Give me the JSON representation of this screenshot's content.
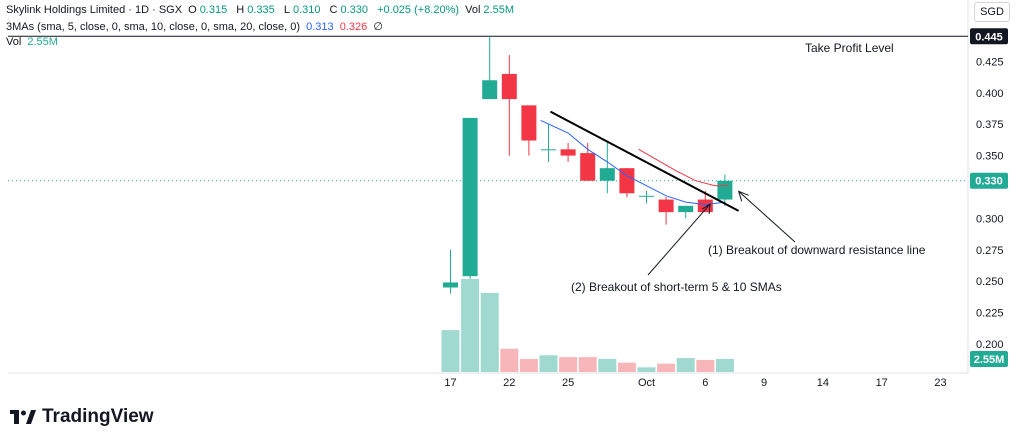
{
  "header": {
    "symbol": "Skylink Holdings Limited · 1D · SGX",
    "open_label": "O",
    "open": "0.315",
    "high_label": "H",
    "high": "0.335",
    "low_label": "L",
    "low": "0.310",
    "close_label": "C",
    "close": "0.330",
    "change": "+0.025 (+8.20%)",
    "vol_label": "Vol",
    "vol": "2.55M"
  },
  "sma_legend": {
    "label": "3MAs (sma, 5, close, 0, sma, 10, close, 0, sma, 20, close, 0)",
    "v1": "0.313",
    "v2": "0.326",
    "v3": "∅"
  },
  "vol_legend": {
    "label": "Vol",
    "value": "2.55M"
  },
  "currency": "SGD",
  "brand": "TradingView",
  "colors": {
    "up": "#22ab94",
    "down": "#f23645",
    "vol_up": "#9fd9cf",
    "vol_down": "#f7b6b9",
    "sma5": "#2962ff",
    "sma10": "#f23645",
    "trendline": "#000000"
  },
  "chart_data": {
    "type": "candlestick",
    "y_ticks": [
      0.425,
      0.4,
      0.375,
      0.35,
      0.325,
      0.3,
      0.275,
      0.25,
      0.225,
      0.2
    ],
    "y_tick_labels": [
      "0.425",
      "0.400",
      "0.375",
      "0.350",
      "",
      "0.300",
      "0.275",
      "0.250",
      "0.225",
      "0.200"
    ],
    "x_ticks": [
      {
        "index": 0,
        "label": "17"
      },
      {
        "index": 3,
        "label": "22"
      },
      {
        "index": 6,
        "label": "25"
      },
      {
        "index": 10,
        "label": "Oct"
      },
      {
        "index": 13,
        "label": "6"
      },
      {
        "index": 16,
        "label": "9"
      },
      {
        "index": 19,
        "label": "14"
      },
      {
        "index": 22,
        "label": "17"
      },
      {
        "index": 25,
        "label": "23"
      }
    ],
    "candles": [
      {
        "i": 0,
        "o": 0.245,
        "h": 0.275,
        "l": 0.24,
        "c": 0.249
      },
      {
        "i": 1,
        "o": 0.254,
        "h": 0.38,
        "l": 0.252,
        "c": 0.38
      },
      {
        "i": 2,
        "o": 0.395,
        "h": 0.445,
        "l": 0.395,
        "c": 0.41
      },
      {
        "i": 3,
        "o": 0.415,
        "h": 0.43,
        "l": 0.35,
        "c": 0.395
      },
      {
        "i": 4,
        "o": 0.39,
        "h": 0.39,
        "l": 0.35,
        "c": 0.362
      },
      {
        "i": 5,
        "o": 0.355,
        "h": 0.375,
        "l": 0.345,
        "c": 0.355
      },
      {
        "i": 6,
        "o": 0.355,
        "h": 0.36,
        "l": 0.345,
        "c": 0.35
      },
      {
        "i": 7,
        "o": 0.352,
        "h": 0.36,
        "l": 0.33,
        "c": 0.33
      },
      {
        "i": 8,
        "o": 0.33,
        "h": 0.362,
        "l": 0.32,
        "c": 0.34
      },
      {
        "i": 9,
        "o": 0.34,
        "h": 0.34,
        "l": 0.317,
        "c": 0.32
      },
      {
        "i": 10,
        "o": 0.318,
        "h": 0.322,
        "l": 0.312,
        "c": 0.318
      },
      {
        "i": 11,
        "o": 0.315,
        "h": 0.317,
        "l": 0.295,
        "c": 0.305
      },
      {
        "i": 12,
        "o": 0.305,
        "h": 0.31,
        "l": 0.3,
        "c": 0.31
      },
      {
        "i": 13,
        "o": 0.315,
        "h": 0.322,
        "l": 0.305,
        "c": 0.305
      },
      {
        "i": 14,
        "o": 0.315,
        "h": 0.335,
        "l": 0.31,
        "c": 0.33
      }
    ],
    "volume": [
      {
        "i": 0,
        "v": 0.45,
        "dir": "up"
      },
      {
        "i": 1,
        "v": 1.0,
        "dir": "up"
      },
      {
        "i": 2,
        "v": 0.85,
        "dir": "up"
      },
      {
        "i": 3,
        "v": 0.25,
        "dir": "down"
      },
      {
        "i": 4,
        "v": 0.14,
        "dir": "down"
      },
      {
        "i": 5,
        "v": 0.18,
        "dir": "up"
      },
      {
        "i": 6,
        "v": 0.16,
        "dir": "down"
      },
      {
        "i": 7,
        "v": 0.16,
        "dir": "down"
      },
      {
        "i": 8,
        "v": 0.14,
        "dir": "up"
      },
      {
        "i": 9,
        "v": 0.1,
        "dir": "down"
      },
      {
        "i": 10,
        "v": 0.05,
        "dir": "up"
      },
      {
        "i": 11,
        "v": 0.09,
        "dir": "down"
      },
      {
        "i": 12,
        "v": 0.15,
        "dir": "up"
      },
      {
        "i": 13,
        "v": 0.13,
        "dir": "down"
      },
      {
        "i": 14,
        "v": 0.14,
        "dir": "up"
      }
    ],
    "sma5": [
      [
        4.6,
        0.378
      ],
      [
        6,
        0.368
      ],
      [
        7,
        0.355
      ],
      [
        8,
        0.345
      ],
      [
        9,
        0.334
      ],
      [
        10,
        0.326
      ],
      [
        11,
        0.318
      ],
      [
        12,
        0.313
      ],
      [
        13,
        0.311
      ],
      [
        14,
        0.313
      ]
    ],
    "sma10": [
      [
        9.6,
        0.355
      ],
      [
        10.5,
        0.347
      ],
      [
        11.5,
        0.338
      ],
      [
        12.5,
        0.33
      ],
      [
        13.5,
        0.326
      ],
      [
        14.2,
        0.326
      ]
    ],
    "trendline": {
      "from": [
        5.1,
        0.385
      ],
      "to": [
        14.7,
        0.306
      ]
    },
    "last_price": {
      "value": 0.33,
      "label": "0.330"
    },
    "high_line": {
      "value": 0.445,
      "label": "0.445"
    },
    "volume_label": "2.55M",
    "annotations": [
      {
        "text": "Take Profit Level"
      },
      {
        "text": "(1) Breakout of downward resistance line",
        "arrow_to": [
          14.5,
          0.312
        ]
      },
      {
        "text": "(2) Breakout of short-term 5 & 10 SMAs",
        "arrow_to": [
          13.5,
          0.313
        ]
      }
    ]
  }
}
